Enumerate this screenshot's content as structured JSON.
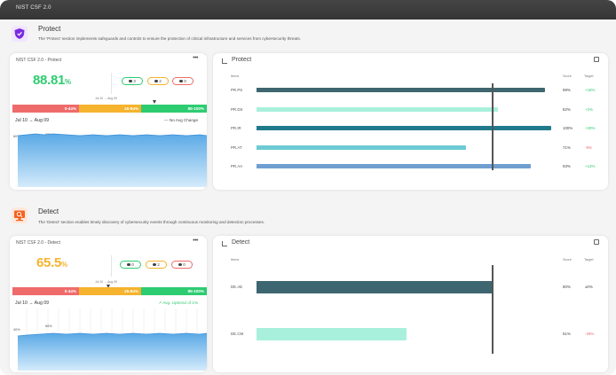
{
  "window": {
    "title": "NIST CSF 2.0"
  },
  "colors": {
    "green": "#2ecc71",
    "orange": "#f5b32e",
    "red": "#ef6b6b",
    "protect_purple": "#7b2ce0",
    "detect_orange": "#f26522"
  },
  "sections": {
    "protect": {
      "icon": "shield-icon",
      "title": "Protect",
      "description": "The 'Protect' section implements safeguards and controls to ensure the protection of critical infrastructure and services from cybersecurity threats.",
      "score_card": {
        "header": "NIST CSF 2.0 - Protect",
        "menu": "•••",
        "score": "88.81",
        "score_unit": "%",
        "pills": [
          {
            "count": "3",
            "color": "#2ecc71"
          },
          {
            "count": "2",
            "color": "#f5b32e"
          },
          {
            "count": "0",
            "color": "#ef6b6b"
          }
        ],
        "mini_range": "Jul 10 → Aug 09",
        "segments": [
          "0-44%",
          "45-84%",
          "85-100%"
        ],
        "marker_value": 88.81,
        "range": "Jul 10 → Aug 09",
        "trend": "— No Avg Change",
        "spark_labels": [
          "60%",
          "90%"
        ]
      },
      "bars_card": {
        "title": "Protect",
        "col_item": "Items",
        "col_score": "Score",
        "col_target": "Target",
        "rows": [
          {
            "label": "PR.PS",
            "score": "98%",
            "target": "+18%",
            "target_color": "#2ecc71",
            "value": 98,
            "color": "#3d6670"
          },
          {
            "label": "PR.DS",
            "score": "82%",
            "target": "+2%",
            "target_color": "#2ecc71",
            "value": 82,
            "color": "#a8f0dc"
          },
          {
            "label": "PR.IR",
            "score": "100%",
            "target": "+20%",
            "target_color": "#2ecc71",
            "value": 100,
            "color": "#1f7a8c"
          },
          {
            "label": "PR.AT",
            "score": "71%",
            "target": "-9%",
            "target_color": "#ef6b6b",
            "value": 71,
            "color": "#6ecad4"
          },
          {
            "label": "PR.AA",
            "score": "93%",
            "target": "+13%",
            "target_color": "#2ecc71",
            "value": 93,
            "color": "#6f9fd1"
          }
        ],
        "target_value": 80
      }
    },
    "detect": {
      "icon": "monitor-search-icon",
      "title": "Detect",
      "description": "The 'Detect' section enables timely discovery of cybersecurity events through continuous monitoring and detection processes.",
      "score_card": {
        "header": "NIST CSF 2.0 - Detect",
        "menu": "•••",
        "score": "65.5",
        "score_unit": "%",
        "pills": [
          {
            "count": "0",
            "color": "#2ecc71"
          },
          {
            "count": "2",
            "color": "#f5b32e"
          },
          {
            "count": "0",
            "color": "#ef6b6b"
          }
        ],
        "mini_range": "Jul 10 → Aug 09",
        "segments": [
          "0-44%",
          "45-84%",
          "85-100%"
        ],
        "marker_value": 65.5,
        "range": "Jul 10 → Aug 09",
        "trend": "↗ Avg. Uptrend of 1%",
        "spark_labels": [
          "40%",
          "66%"
        ]
      },
      "bars_card": {
        "title": "Detect",
        "col_item": "Items",
        "col_score": "Score",
        "col_target": "Target",
        "rows": [
          {
            "label": "DE.AE",
            "score": "80%",
            "target": "±0%",
            "target_color": "#444444",
            "value": 80,
            "color": "#3d6670"
          },
          {
            "label": "DE.CM",
            "score": "51%",
            "target": "-29%",
            "target_color": "#ef6b6b",
            "value": 51,
            "color": "#a8f0dc"
          }
        ],
        "target_value": 80
      }
    }
  }
}
